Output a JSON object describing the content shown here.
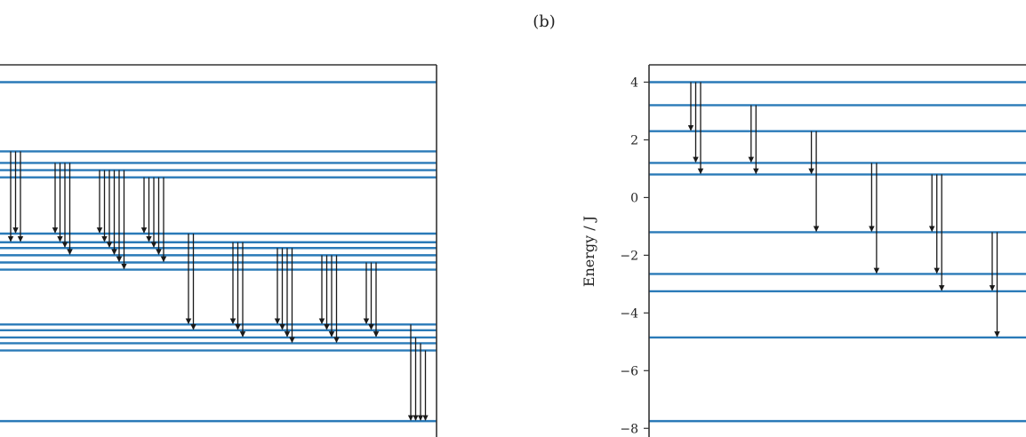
{
  "figure": {
    "panel_label": "(b)"
  },
  "chart_data": [
    {
      "type": "energy-level-diagram",
      "title": "",
      "ylabel": "",
      "ylim": [
        -8.3,
        4.6
      ],
      "show_yticks": false,
      "levels": [
        -7.75,
        -5.3,
        -5.05,
        -4.85,
        -4.6,
        -4.4,
        -2.5,
        -2.25,
        -2.0,
        -1.75,
        -1.55,
        -1.25,
        0.7,
        0.95,
        1.2,
        1.6,
        4.0
      ],
      "transition_groups": [
        {
          "arrows": [
            {
              "from": 1.6,
              "to": -1.55
            },
            {
              "from": 1.6,
              "to": -1.25
            },
            {
              "from": 1.6,
              "to": -1.55
            }
          ]
        },
        {
          "arrows": [
            {
              "from": 1.2,
              "to": -1.25
            },
            {
              "from": 1.2,
              "to": -1.55
            },
            {
              "from": 1.2,
              "to": -1.75
            },
            {
              "from": 1.2,
              "to": -2.0
            }
          ]
        },
        {
          "arrows": [
            {
              "from": 0.95,
              "to": -1.25
            },
            {
              "from": 0.95,
              "to": -1.55
            },
            {
              "from": 0.95,
              "to": -1.75
            },
            {
              "from": 0.95,
              "to": -2.0
            },
            {
              "from": 0.95,
              "to": -2.25
            },
            {
              "from": 0.95,
              "to": -2.5
            }
          ]
        },
        {
          "arrows": [
            {
              "from": 0.7,
              "to": -1.25
            },
            {
              "from": 0.7,
              "to": -1.55
            },
            {
              "from": 0.7,
              "to": -1.75
            },
            {
              "from": 0.7,
              "to": -2.0
            },
            {
              "from": 0.7,
              "to": -2.25
            }
          ]
        },
        {
          "arrows": [
            {
              "from": -1.25,
              "to": -4.4
            },
            {
              "from": -1.25,
              "to": -4.6
            }
          ]
        },
        {
          "arrows": [
            {
              "from": -1.55,
              "to": -4.4
            },
            {
              "from": -1.55,
              "to": -4.6
            },
            {
              "from": -1.55,
              "to": -4.85
            }
          ]
        },
        {
          "arrows": [
            {
              "from": -1.75,
              "to": -4.4
            },
            {
              "from": -1.75,
              "to": -4.6
            },
            {
              "from": -1.75,
              "to": -4.85
            },
            {
              "from": -1.75,
              "to": -5.05
            }
          ]
        },
        {
          "arrows": [
            {
              "from": -2.0,
              "to": -4.4
            },
            {
              "from": -2.0,
              "to": -4.6
            },
            {
              "from": -2.0,
              "to": -4.85
            },
            {
              "from": -2.0,
              "to": -5.05
            }
          ]
        },
        {
          "arrows": [
            {
              "from": -2.25,
              "to": -4.4
            },
            {
              "from": -2.25,
              "to": -4.6
            },
            {
              "from": -2.25,
              "to": -4.85
            }
          ]
        },
        {
          "arrows": [
            {
              "from": -4.4,
              "to": -7.75
            },
            {
              "from": -4.85,
              "to": -7.75
            },
            {
              "from": -5.05,
              "to": -7.75
            },
            {
              "from": -5.3,
              "to": -7.75
            }
          ]
        }
      ]
    },
    {
      "type": "energy-level-diagram",
      "title": "",
      "ylabel": "Energy / J",
      "ylim": [
        -8.3,
        4.6
      ],
      "show_yticks": true,
      "yticks": [
        4,
        2,
        0,
        -2,
        -4,
        -6,
        -8
      ],
      "ytick_labels": [
        "4",
        "2",
        "0",
        "−2",
        "−4",
        "−6",
        "−8"
      ],
      "levels": [
        4.0,
        3.2,
        2.3,
        1.2,
        0.8,
        -1.2,
        -2.65,
        -3.25,
        -4.85,
        -7.75
      ],
      "transition_groups": [
        {
          "arrows": [
            {
              "from": 4.0,
              "to": 2.3
            },
            {
              "from": 4.0,
              "to": 1.2
            },
            {
              "from": 4.0,
              "to": 0.8
            }
          ]
        },
        {
          "arrows": [
            {
              "from": 3.2,
              "to": 1.2
            },
            {
              "from": 3.2,
              "to": 0.8
            }
          ]
        },
        {
          "arrows": [
            {
              "from": 2.3,
              "to": 0.8
            },
            {
              "from": 2.3,
              "to": -1.2
            }
          ]
        },
        {
          "arrows": [
            {
              "from": 1.2,
              "to": -1.2
            },
            {
              "from": 1.2,
              "to": -2.65
            }
          ]
        },
        {
          "arrows": [
            {
              "from": 0.8,
              "to": -1.2
            },
            {
              "from": 0.8,
              "to": -2.65
            },
            {
              "from": 0.8,
              "to": -3.25
            }
          ]
        },
        {
          "arrows": [
            {
              "from": -1.2,
              "to": -3.25
            },
            {
              "from": -1.2,
              "to": -4.85
            }
          ]
        }
      ]
    }
  ],
  "colors": {
    "level_line": "#2a7ab8",
    "arrow": "#1a1a1a",
    "frame": "#333333",
    "text": "#222222"
  }
}
